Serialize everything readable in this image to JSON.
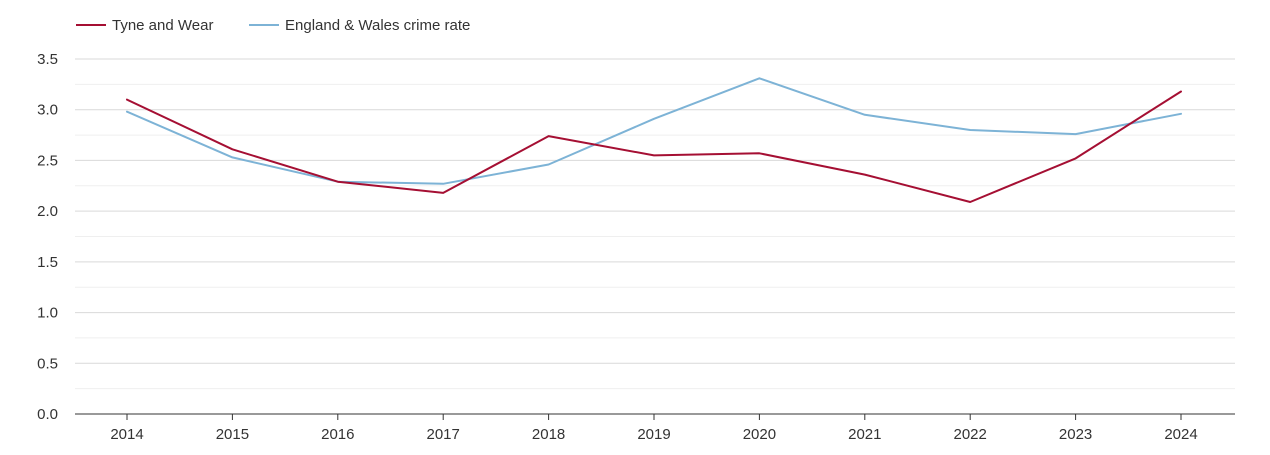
{
  "chart_data": {
    "type": "line",
    "title": "",
    "xlabel": "",
    "ylabel": "",
    "x": [
      "2014",
      "2015",
      "2016",
      "2017",
      "2018",
      "2019",
      "2020",
      "2021",
      "2022",
      "2023",
      "2024"
    ],
    "ylim": [
      0,
      3.5
    ],
    "yticks": [
      "0.0",
      "0.5",
      "1.0",
      "1.5",
      "2.0",
      "2.5",
      "3.0",
      "3.5"
    ],
    "grid": true,
    "legend_position": "top-left",
    "series": [
      {
        "name": "Tyne and Wear",
        "color": "#a50f33",
        "values": [
          3.1,
          2.61,
          2.29,
          2.18,
          2.74,
          2.55,
          2.57,
          2.36,
          2.09,
          2.52,
          3.18
        ]
      },
      {
        "name": "England & Wales crime rate",
        "color": "#7db3d6",
        "values": [
          2.98,
          2.53,
          2.29,
          2.27,
          2.46,
          2.91,
          3.31,
          2.95,
          2.8,
          2.76,
          2.96
        ]
      }
    ]
  }
}
